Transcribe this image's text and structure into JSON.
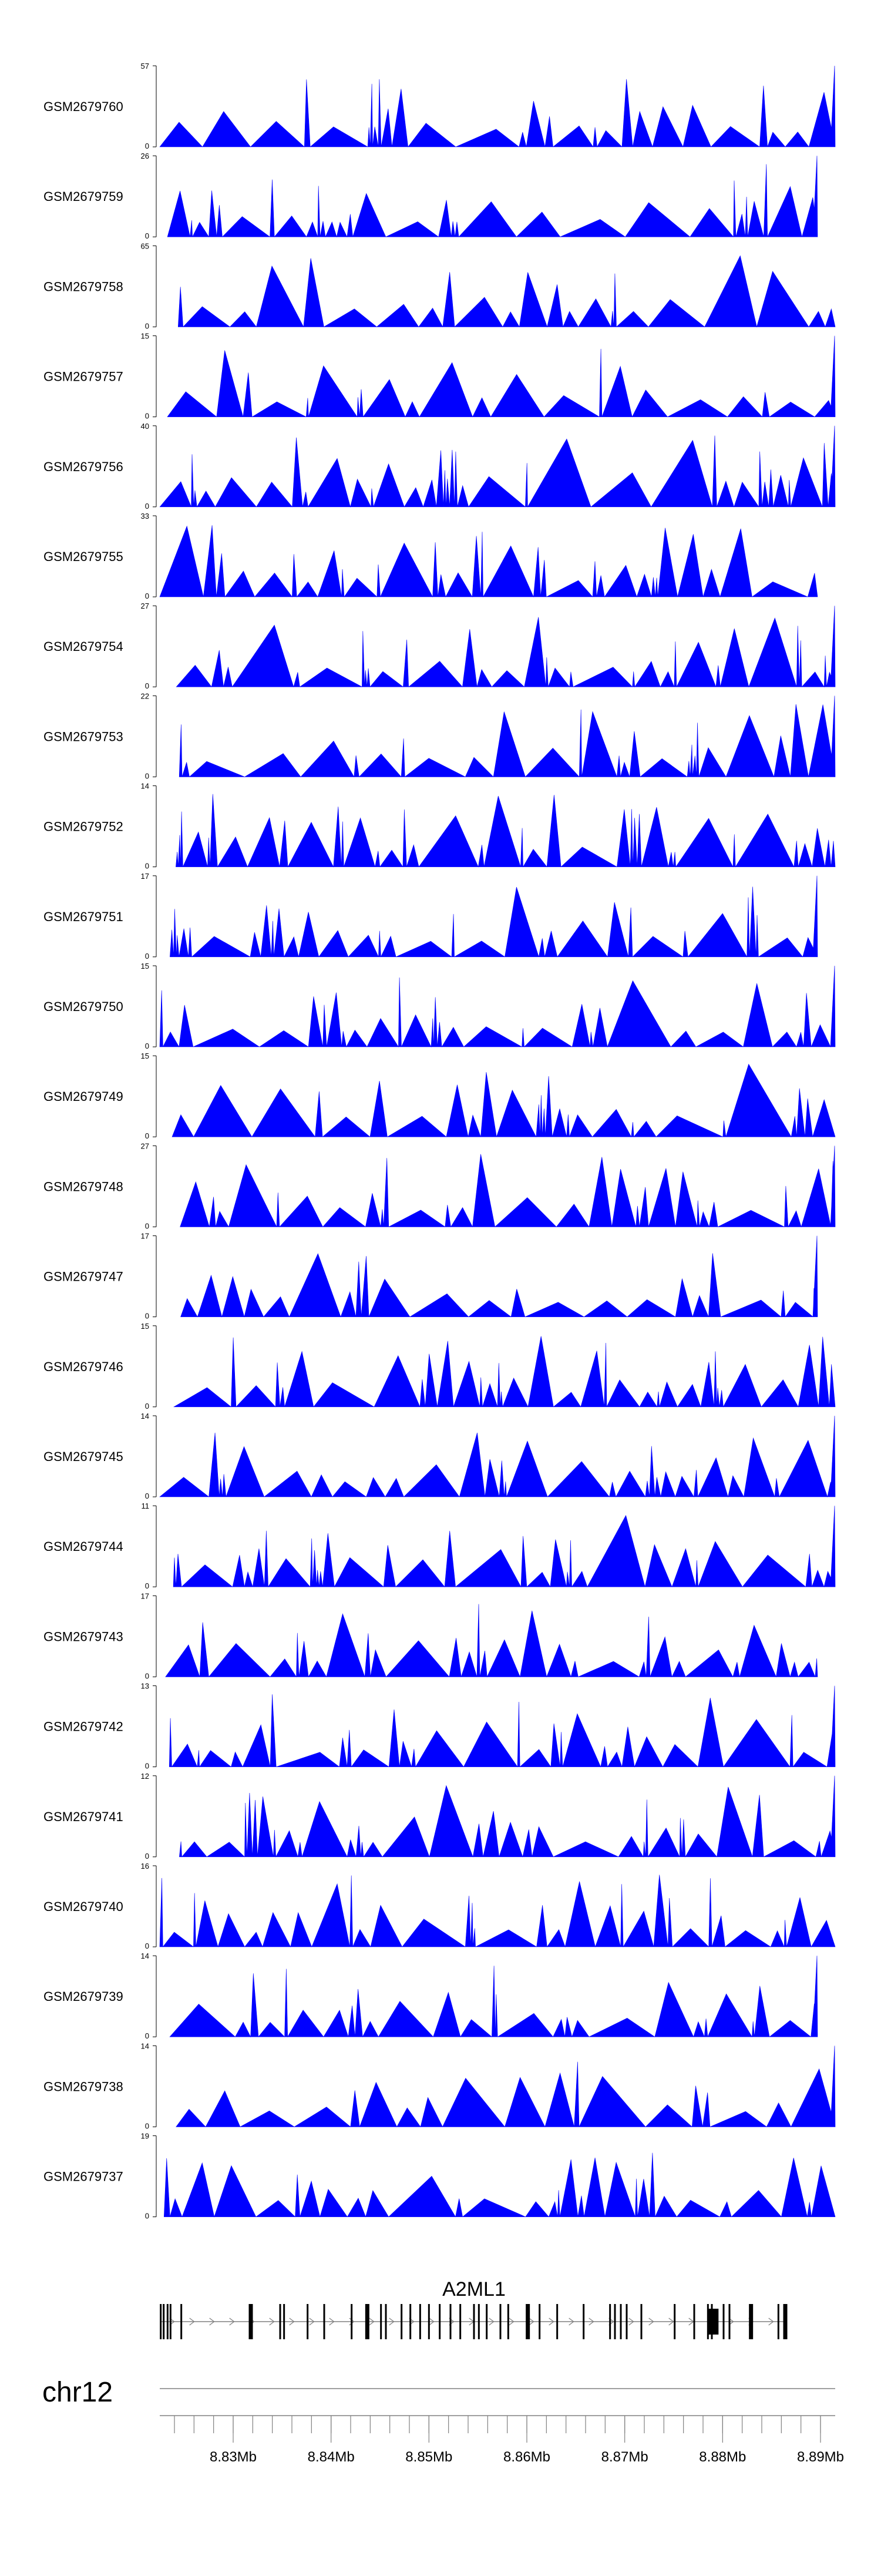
{
  "colors": {
    "signal": "#0000ff",
    "axis": "#000000",
    "gene": "#000000",
    "ruler": "#808080"
  },
  "chart_data": {
    "type": "area",
    "title": "",
    "chromosome": "chr12",
    "x_range_mb": [
      8.8225,
      8.8915
    ],
    "tracks": [
      {
        "name": "GSM2679760",
        "ymax": 57,
        "ymin": 0
      },
      {
        "name": "GSM2679759",
        "ymax": 26,
        "ymin": 0
      },
      {
        "name": "GSM2679758",
        "ymax": 65,
        "ymin": 0
      },
      {
        "name": "GSM2679757",
        "ymax": 15,
        "ymin": 0
      },
      {
        "name": "GSM2679756",
        "ymax": 40,
        "ymin": 0
      },
      {
        "name": "GSM2679755",
        "ymax": 33,
        "ymin": 0
      },
      {
        "name": "GSM2679754",
        "ymax": 27,
        "ymin": 0
      },
      {
        "name": "GSM2679753",
        "ymax": 22,
        "ymin": 0
      },
      {
        "name": "GSM2679752",
        "ymax": 14,
        "ymin": 0
      },
      {
        "name": "GSM2679751",
        "ymax": 17,
        "ymin": 0
      },
      {
        "name": "GSM2679750",
        "ymax": 15,
        "ymin": 0
      },
      {
        "name": "GSM2679749",
        "ymax": 15,
        "ymin": 0
      },
      {
        "name": "GSM2679748",
        "ymax": 27,
        "ymin": 0
      },
      {
        "name": "GSM2679747",
        "ymax": 17,
        "ymin": 0
      },
      {
        "name": "GSM2679746",
        "ymax": 15,
        "ymin": 0
      },
      {
        "name": "GSM2679745",
        "ymax": 14,
        "ymin": 0
      },
      {
        "name": "GSM2679744",
        "ymax": 11,
        "ymin": 0
      },
      {
        "name": "GSM2679743",
        "ymax": 17,
        "ymin": 0
      },
      {
        "name": "GSM2679742",
        "ymax": 13,
        "ymin": 0
      },
      {
        "name": "GSM2679741",
        "ymax": 12,
        "ymin": 0
      },
      {
        "name": "GSM2679740",
        "ymax": 16,
        "ymin": 0
      },
      {
        "name": "GSM2679739",
        "ymax": 14,
        "ymin": 0
      },
      {
        "name": "GSM2679738",
        "ymax": 14,
        "ymin": 0
      },
      {
        "name": "GSM2679737",
        "ymax": 19,
        "ymin": 0
      }
    ],
    "gene": {
      "name": "A2ML1",
      "strand": "+",
      "start_mb": 8.8226,
      "end_mb": 8.8866,
      "exons_mb": [
        8.8226,
        8.8229,
        8.8233,
        8.8236,
        8.8247,
        8.8318,
        8.8348,
        8.8352,
        8.8376,
        8.8393,
        8.8421,
        8.8437,
        8.8451,
        8.8456,
        8.8472,
        8.8481,
        8.8491,
        8.85,
        8.8511,
        8.8522,
        8.8532,
        8.8546,
        8.8551,
        8.8559,
        8.8573,
        8.8581,
        8.8601,
        8.8613,
        8.8631,
        8.8658,
        8.8685,
        8.869,
        8.8696,
        8.8702,
        8.8717,
        8.8751,
        8.8771,
        8.8785,
        8.8789,
        8.8801,
        8.8807,
        8.8829,
        8.8857,
        8.8864
      ]
    },
    "axis": {
      "label_ticks_mb": [
        8.83,
        8.84,
        8.85,
        8.86,
        8.87,
        8.88,
        8.89
      ],
      "tick_labels": [
        "8.83Mb",
        "8.84Mb",
        "8.85Mb",
        "8.86Mb",
        "8.87Mb",
        "8.88Mb",
        "8.89Mb"
      ],
      "minor_tick_step_mb": 0.002
    }
  }
}
